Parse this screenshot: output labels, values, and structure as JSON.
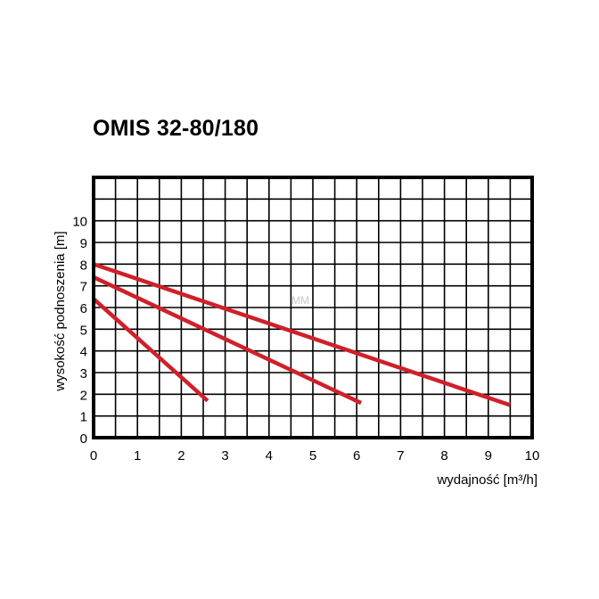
{
  "chart_data": {
    "type": "line",
    "title": "OMIS 32-80/180",
    "xlabel": "wydajność [m³/h]",
    "ylabel": "wysokość podnoszenia [m]",
    "xlim": [
      0,
      10
    ],
    "ylim": [
      0,
      12
    ],
    "x_ticks": [
      "0",
      "1",
      "2",
      "3",
      "4",
      "5",
      "6",
      "7",
      "8",
      "9",
      "10"
    ],
    "y_ticks": [
      "0",
      "1",
      "2",
      "3",
      "4",
      "5",
      "6",
      "7",
      "8",
      "9",
      "10"
    ],
    "grid": true,
    "watermark": "MM",
    "colors": {
      "series": "#d0202a",
      "grid": "#000000",
      "frame": "#000000",
      "background": "#ffffff"
    },
    "series": [
      {
        "x": [
          0,
          9.5
        ],
        "y": [
          8.0,
          1.5
        ]
      },
      {
        "x": [
          0,
          6.1
        ],
        "y": [
          7.4,
          1.6
        ]
      },
      {
        "x": [
          0,
          2.6
        ],
        "y": [
          6.4,
          1.7
        ]
      }
    ]
  }
}
